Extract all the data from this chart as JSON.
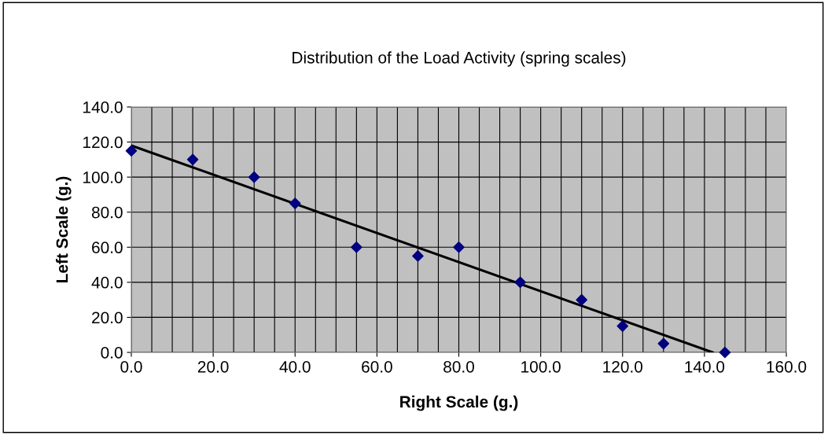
{
  "chart_data": {
    "type": "scatter",
    "title": "Distribution of the Load Activity (spring scales)",
    "xlabel": "Right Scale (g.)",
    "ylabel": "Left Scale (g.)",
    "series": [
      {
        "color": "#000080",
        "marker": "diamond",
        "x": [
          0,
          15,
          30,
          40,
          55,
          70,
          80,
          95,
          110,
          120,
          130,
          145
        ],
        "values": [
          115,
          110,
          100,
          85,
          60,
          55,
          60,
          40,
          30,
          15,
          5,
          0
        ]
      },
      {
        "type": "line",
        "color": "#000000",
        "marker": "none",
        "line_style": "solid",
        "x": [
          0,
          142
        ],
        "values": [
          118,
          0
        ]
      }
    ],
    "xlim": [
      0,
      160
    ],
    "ylim": [
      0,
      140
    ],
    "xticks": [
      {
        "value": 0,
        "label": "0.0"
      },
      {
        "value": 5,
        "label": null
      },
      {
        "value": 10,
        "label": null
      },
      {
        "value": 15,
        "label": null
      },
      {
        "value": 20,
        "label": "20.0"
      },
      {
        "value": 25,
        "label": null
      },
      {
        "value": 30,
        "label": null
      },
      {
        "value": 35,
        "label": null
      },
      {
        "value": 40,
        "label": "40.0"
      },
      {
        "value": 45,
        "label": null
      },
      {
        "value": 50,
        "label": null
      },
      {
        "value": 55,
        "label": null
      },
      {
        "value": 60,
        "label": "60.0"
      },
      {
        "value": 65,
        "label": null
      },
      {
        "value": 70,
        "label": null
      },
      {
        "value": 75,
        "label": null
      },
      {
        "value": 80,
        "label": "80.0"
      },
      {
        "value": 85,
        "label": null
      },
      {
        "value": 90,
        "label": null
      },
      {
        "value": 95,
        "label": null
      },
      {
        "value": 100,
        "label": "100.0"
      },
      {
        "value": 105,
        "label": null
      },
      {
        "value": 110,
        "label": null
      },
      {
        "value": 115,
        "label": null
      },
      {
        "value": 120,
        "label": "120.0"
      },
      {
        "value": 125,
        "label": null
      },
      {
        "value": 130,
        "label": null
      },
      {
        "value": 135,
        "label": null
      },
      {
        "value": 140,
        "label": "140.0"
      },
      {
        "value": 145,
        "label": null
      },
      {
        "value": 150,
        "label": null
      },
      {
        "value": 155,
        "label": null
      },
      {
        "value": 160,
        "label": "160.0"
      }
    ],
    "yticks": [
      {
        "value": 0,
        "label": "0.0"
      },
      {
        "value": 20,
        "label": "20.0"
      },
      {
        "value": 40,
        "label": "40.0"
      },
      {
        "value": 60,
        "label": "60.0"
      },
      {
        "value": 80,
        "label": "80.0"
      },
      {
        "value": 100,
        "label": "100.0"
      },
      {
        "value": 120,
        "label": "120.0"
      },
      {
        "value": 140,
        "label": "140.0"
      }
    ],
    "grid": true,
    "legend": false
  }
}
